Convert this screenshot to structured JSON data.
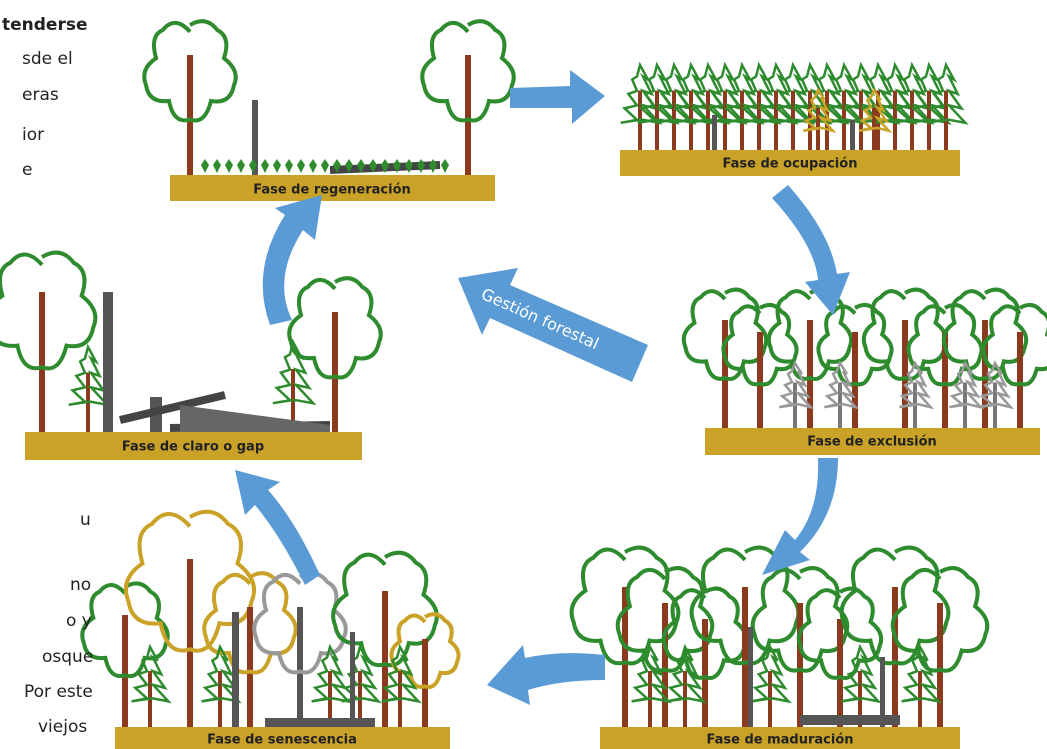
{
  "left_text": {
    "top": [
      "tenderse",
      "sde el",
      "eras",
      "ior",
      "e"
    ],
    "bottom": [
      "u",
      "no",
      "o y",
      "osque",
      "Por este",
      "viejos"
    ]
  },
  "phases": [
    {
      "label": "Fase de regeneración"
    },
    {
      "label": "Fase de ocupación"
    },
    {
      "label": "Fase de exclusión"
    },
    {
      "label": "Fase de maduración"
    },
    {
      "label": "Fase de senescencia"
    },
    {
      "label": "Fase de claro o gap"
    }
  ],
  "management": "Gestión forestal"
}
